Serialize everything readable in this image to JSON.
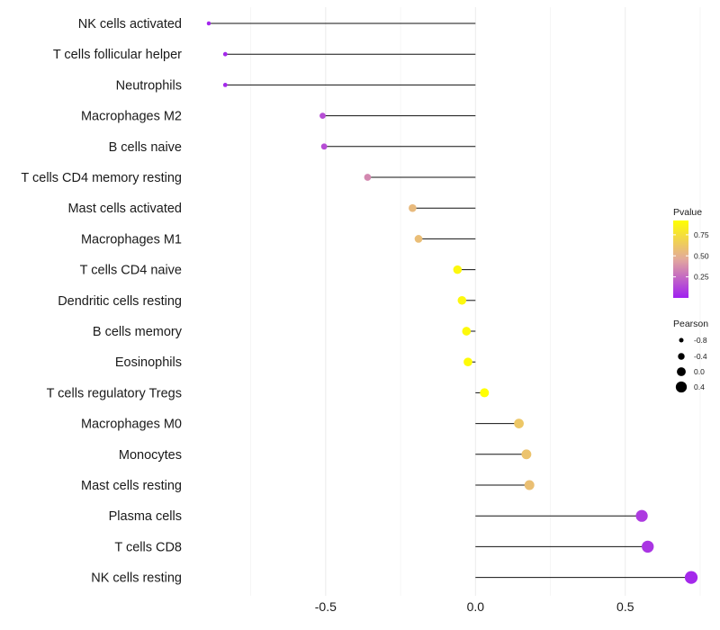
{
  "chart_data": {
    "type": "lollipop",
    "orientation": "horizontal",
    "xlim": [
      -0.95,
      0.78
    ],
    "x_ticks": [
      -0.5,
      0.0,
      0.5
    ],
    "x_tick_labels": [
      "-0.5",
      "0.0",
      "0.5"
    ],
    "baseline": 0,
    "grid": true,
    "categories": [
      "NK cells activated",
      "T cells follicular helper",
      "Neutrophils",
      "Macrophages M2",
      "B cells naive",
      "T cells CD4 memory resting",
      "Mast cells activated",
      "Macrophages M1",
      "T cells CD4 naive",
      "Dendritic cells resting",
      "B cells memory",
      "Eosinophils",
      "T cells regulatory  Tregs ",
      "Macrophages M0",
      "Monocytes",
      "Mast cells resting",
      "Plasma cells",
      "T cells CD8",
      "NK cells resting"
    ],
    "pearson": [
      -0.89,
      -0.835,
      -0.835,
      -0.51,
      -0.505,
      -0.36,
      -0.21,
      -0.19,
      -0.06,
      -0.045,
      -0.03,
      -0.025,
      0.03,
      0.145,
      0.17,
      0.18,
      0.555,
      0.575,
      0.72
    ],
    "pvalue": [
      0.02,
      0.03,
      0.03,
      0.15,
      0.15,
      0.35,
      0.55,
      0.57,
      0.88,
      0.88,
      0.89,
      0.9,
      0.92,
      0.62,
      0.6,
      0.58,
      0.09,
      0.07,
      0.03
    ],
    "color_legend": {
      "title": "Pvalue",
      "ticks": [
        0.25,
        0.5,
        0.75
      ],
      "tick_labels": [
        "0.25",
        "0.50",
        "0.75"
      ],
      "range": [
        0.0,
        0.92
      ],
      "low_color": "#a020f0",
      "mid_color": "#e3a99c",
      "high_color": "#ffff00"
    },
    "size_legend": {
      "title": "Pearson",
      "values": [
        -0.8,
        -0.4,
        0.0,
        0.4
      ],
      "labels": [
        "-0.8",
        "-0.4",
        "0.0",
        "0.4"
      ]
    }
  }
}
